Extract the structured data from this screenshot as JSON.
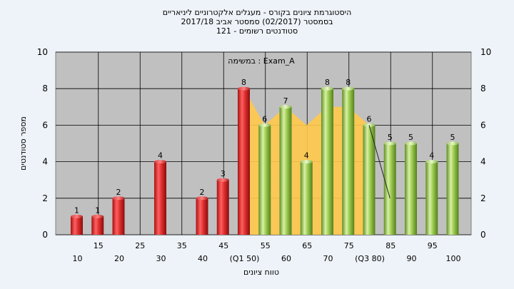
{
  "chart_data": {
    "type": "bar",
    "title_lines": [
      "היסטוגרמת ציונים בקורס - מעגלים אלקטרוניים ליניאריים",
      "בסמסטר (02/2017) סמסטר אביב 2017/18",
      "סטודנטים רשומים - 121"
    ],
    "annotation": "במשימה : Exam_A",
    "ylabel": "מספר סטודנטים",
    "xlabel": "טווח ציונים",
    "ylim": [
      0,
      10
    ],
    "yticks": [
      0,
      2,
      4,
      6,
      8,
      10
    ],
    "x_ticks_top_row": [
      {
        "x": 15,
        "label": "15"
      },
      {
        "x": 25,
        "label": "25"
      },
      {
        "x": 35,
        "label": "35"
      },
      {
        "x": 45,
        "label": "45"
      },
      {
        "x": 55,
        "label": "55"
      },
      {
        "x": 65,
        "label": "65"
      },
      {
        "x": 75,
        "label": "75"
      },
      {
        "x": 85,
        "label": "85"
      },
      {
        "x": 95,
        "label": "95"
      }
    ],
    "x_ticks_bottom_row": [
      {
        "x": 10,
        "label": "10"
      },
      {
        "x": 20,
        "label": "20"
      },
      {
        "x": 30,
        "label": "30"
      },
      {
        "x": 40,
        "label": "40"
      },
      {
        "x": 50,
        "label": "(Q1 50)"
      },
      {
        "x": 60,
        "label": "60"
      },
      {
        "x": 70,
        "label": "70"
      },
      {
        "x": 80,
        "label": "(Q3 80)"
      },
      {
        "x": 90,
        "label": "90"
      },
      {
        "x": 100,
        "label": "100"
      }
    ],
    "bars": [
      {
        "x": 10,
        "value": 1,
        "color": "red"
      },
      {
        "x": 15,
        "value": 1,
        "color": "red"
      },
      {
        "x": 20,
        "value": 2,
        "color": "red"
      },
      {
        "x": 30,
        "value": 4,
        "color": "red"
      },
      {
        "x": 40,
        "value": 2,
        "color": "red"
      },
      {
        "x": 45,
        "value": 3,
        "color": "red"
      },
      {
        "x": 50,
        "value": 8,
        "color": "red"
      },
      {
        "x": 55,
        "value": 6,
        "color": "green"
      },
      {
        "x": 60,
        "value": 7,
        "color": "green"
      },
      {
        "x": 65,
        "value": 4,
        "color": "green"
      },
      {
        "x": 70,
        "value": 8,
        "color": "green"
      },
      {
        "x": 75,
        "value": 8,
        "color": "green"
      },
      {
        "x": 80,
        "value": 6,
        "color": "green"
      },
      {
        "x": 85,
        "value": 5,
        "color": "green"
      },
      {
        "x": 90,
        "value": 5,
        "color": "green"
      },
      {
        "x": 95,
        "value": 4,
        "color": "green"
      },
      {
        "x": 100,
        "value": 5,
        "color": "green"
      }
    ],
    "interquartile_band": {
      "color": "#ffc94a",
      "points": [
        {
          "x": 50,
          "y": 8
        },
        {
          "x": 55,
          "y": 6
        },
        {
          "x": 60,
          "y": 7
        },
        {
          "x": 65,
          "y": 6
        },
        {
          "x": 70,
          "y": 7
        },
        {
          "x": 75,
          "y": 7
        },
        {
          "x": 80,
          "y": 6
        }
      ]
    },
    "trace_line": {
      "x1": 80,
      "y1": 6,
      "x2": 85,
      "y2": 2
    },
    "colors": {
      "red_bar": "#d42a2a",
      "green_bar": "#8cbf3f",
      "plot_background": "#c0c0c0",
      "page_background": "#eef3f9"
    },
    "grid": true
  }
}
